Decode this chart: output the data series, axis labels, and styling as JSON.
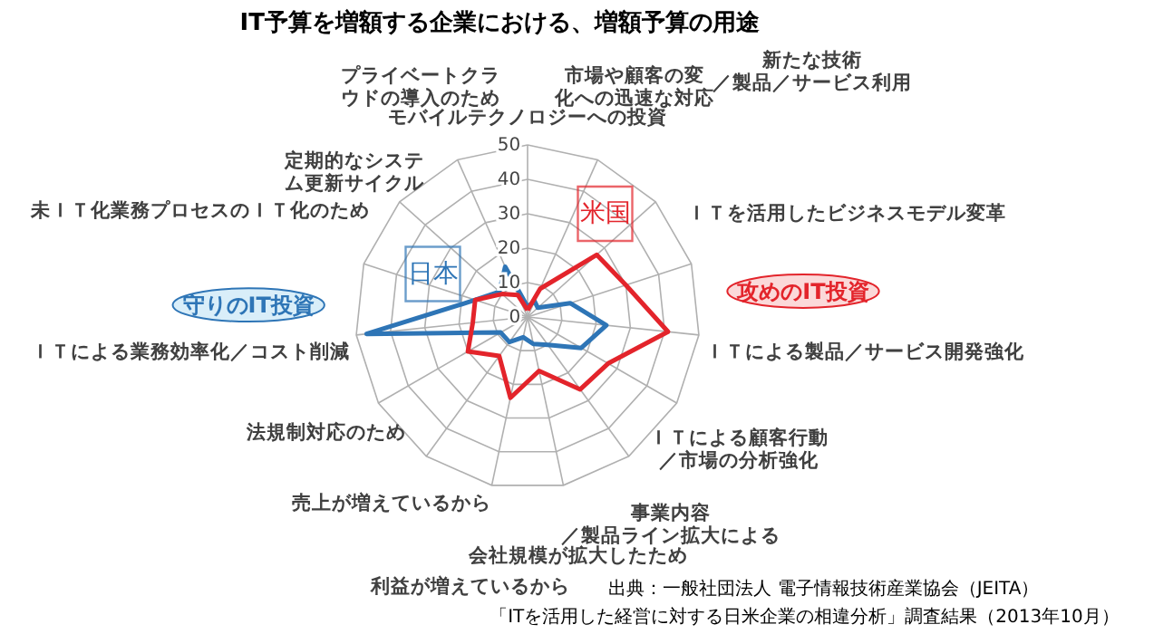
{
  "chart_data": {
    "type": "radar",
    "title": "IT予算を増額する企業における、増額予算の用途",
    "categories": [
      "モバイルテクノロジーへの投資",
      "市場や顧客の変化への迅速な対応",
      "新たな技術／製品／サービス利用",
      "ＩＴを活用したビジネスモデル変革",
      "ＩＴによる製品／サービス開発強化",
      "ＩＴによる顧客行動／市場の分析強化",
      "事業内容／製品ライン拡大による",
      "会社規模が拡大したため",
      "利益が増えているから",
      "売上が増えているから",
      "法規制対応のため",
      "ＩＴによる業務効率化／コスト削減",
      "未ＩＴ化業務プロセスのＩＴ化のため",
      "定期的なシステム更新サイクル",
      "プライベートクラウドの導入のため"
    ],
    "series": [
      {
        "name": "日本",
        "color": "#2e75b6",
        "values": [
          3,
          5,
          4,
          13,
          23,
          18,
          10,
          8,
          6,
          9,
          9,
          47,
          16,
          11,
          16
        ]
      },
      {
        "name": "米国",
        "color": "#e3242b",
        "values": [
          2,
          9,
          27,
          30,
          41,
          27,
          26,
          16,
          24,
          14,
          20,
          16,
          16,
          10,
          7
        ]
      }
    ],
    "ylim": [
      0,
      50
    ],
    "yticks": [
      0,
      10,
      20,
      30,
      40,
      50
    ],
    "grid": true,
    "legend": false,
    "annotations": [
      "守りのIT投資",
      "攻めのIT投資",
      "出典：一般社団法人 電子情報技術産業協会（JEITA）",
      "「ITを活用した経営に対する日米企業の相違分析」調査結果（2013年10月）"
    ]
  }
}
